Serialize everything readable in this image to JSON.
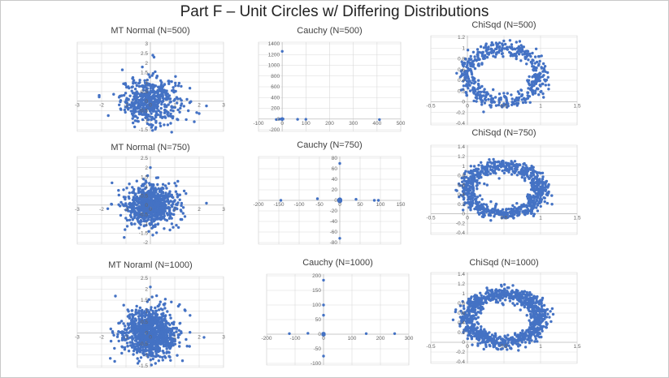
{
  "page": {
    "title": "Part F – Unit Circles w/ Differing Distributions"
  },
  "colors": {
    "marker": "#4472c4",
    "grid": "#d9d9d9",
    "axis": "#bfbfbf",
    "tick": "#666666"
  },
  "chart_data": [
    {
      "id": "mt500",
      "type": "scatter",
      "title": "MT Normal (N=500)",
      "distribution": "normal",
      "n": 500,
      "sd": 0.6,
      "xlim": [
        -3,
        3
      ],
      "ylim": [
        -1.5,
        3
      ],
      "xticks": [
        -3,
        -2,
        -1,
        0,
        1,
        2,
        3
      ],
      "yticks": [
        -1.5,
        -1,
        -0.5,
        0,
        0.5,
        1,
        1.5,
        2,
        2.5,
        3
      ],
      "xlabels": [
        "-3",
        "-2",
        "-1",
        "0",
        "1",
        "2",
        "3"
      ],
      "ylabels": [
        "-1.5",
        "-1",
        "-0.5",
        "0",
        "0.5",
        "1",
        "1.5",
        "2",
        "2.5",
        "3"
      ],
      "outliers": [
        [
          -2.1,
          0.3
        ],
        [
          2.3,
          -0.25
        ],
        [
          1.9,
          -0.6
        ],
        [
          2.0,
          -0.65
        ],
        [
          0.1,
          2.4
        ],
        [
          0.15,
          2.3
        ]
      ]
    },
    {
      "id": "cauchy500",
      "type": "scatter",
      "title": "Cauchy (N=500)",
      "distribution": "cauchy",
      "n": 500,
      "xlim": [
        -100,
        500
      ],
      "ylim": [
        -200,
        1400
      ],
      "xticks": [
        -100,
        0,
        100,
        200,
        300,
        400,
        500
      ],
      "yticks": [
        -200,
        0,
        200,
        400,
        600,
        800,
        1000,
        1200,
        1400
      ],
      "xlabels": [
        "-100",
        "0",
        "100",
        "200",
        "300",
        "400",
        "500"
      ],
      "ylabels": [
        "-200",
        "0",
        "200",
        "400",
        "600",
        "800",
        "1000",
        "1200",
        "1400"
      ],
      "outliers": [
        [
          0,
          1260
        ],
        [
          410,
          -10
        ],
        [
          65,
          -5
        ],
        [
          100,
          -5
        ],
        [
          -25,
          -8
        ],
        [
          -12,
          -3
        ]
      ]
    },
    {
      "id": "chisq500",
      "type": "scatter",
      "title": "ChiSqd (N=500)",
      "distribution": "ring",
      "n": 500,
      "cx": 0.5,
      "cy": 0.5,
      "r": 0.5,
      "noise": 0.07,
      "xlim": [
        -0.5,
        1.5
      ],
      "ylim": [
        -0.4,
        1.2
      ],
      "xticks": [
        -0.5,
        0,
        0.5,
        1,
        1.5
      ],
      "yticks": [
        -0.4,
        -0.2,
        0,
        0.2,
        0.4,
        0.6,
        0.8,
        1,
        1.2
      ],
      "xlabels": [
        "-0.5",
        "0",
        "0.5",
        "1",
        "1.5"
      ],
      "ylabels": [
        "-0.4",
        "-0.2",
        "0",
        "0.2",
        "0.4",
        "0.6",
        "0.8",
        "1",
        "1.2"
      ],
      "outliers": []
    },
    {
      "id": "mt750",
      "type": "scatter",
      "title": "MT Normal (N=750)",
      "distribution": "normal",
      "n": 750,
      "sd": 0.55,
      "xlim": [
        -3,
        3
      ],
      "ylim": [
        -2,
        2.5
      ],
      "xticks": [
        -3,
        -2,
        -1,
        0,
        1,
        2,
        3
      ],
      "yticks": [
        -2,
        -1.5,
        -1,
        -0.5,
        0,
        0.5,
        1,
        1.5,
        2,
        2.5
      ],
      "xlabels": [
        "-3",
        "-2",
        "-1",
        "0",
        "1",
        "2",
        "3"
      ],
      "ylabels": [
        "-2",
        "-1.5",
        "-1",
        "-0.5",
        "0",
        "0.5",
        "1",
        "1.5",
        "2",
        "2.5"
      ],
      "outliers": [
        [
          -1.6,
          0.05
        ],
        [
          2.3,
          0.1
        ],
        [
          0.1,
          -1.6
        ],
        [
          0.0,
          2.0
        ]
      ]
    },
    {
      "id": "cauchy750",
      "type": "scatter",
      "title": "Cauchy (N=750)",
      "distribution": "cauchy",
      "n": 750,
      "xlim": [
        -200,
        150
      ],
      "ylim": [
        -80,
        80
      ],
      "xticks": [
        -200,
        -150,
        -100,
        -50,
        0,
        50,
        100,
        150
      ],
      "yticks": [
        -80,
        -60,
        -40,
        -20,
        0,
        20,
        40,
        60,
        80
      ],
      "xlabels": [
        "-200",
        "-150",
        "-100",
        "-50",
        "0",
        "50",
        "100",
        "150"
      ],
      "ylabels": [
        "-80",
        "-60",
        "-40",
        "-20",
        "0",
        "20",
        "40",
        "60",
        "80"
      ],
      "outliers": [
        [
          0,
          70
        ],
        [
          0,
          -72
        ],
        [
          -145,
          0
        ],
        [
          95,
          0
        ],
        [
          85,
          0
        ],
        [
          -55,
          3
        ],
        [
          40,
          2
        ]
      ]
    },
    {
      "id": "chisq750",
      "type": "scatter",
      "title": "ChiSqd (N=750)",
      "distribution": "ring",
      "n": 750,
      "cx": 0.5,
      "cy": 0.5,
      "r": 0.5,
      "noise": 0.07,
      "xlim": [
        -0.5,
        1.5
      ],
      "ylim": [
        -0.4,
        1.4
      ],
      "xticks": [
        -0.5,
        0,
        0.5,
        1,
        1.5
      ],
      "yticks": [
        -0.4,
        -0.2,
        0,
        0.2,
        0.4,
        0.6,
        0.8,
        1,
        1.2,
        1.4
      ],
      "xlabels": [
        "-0.5",
        "0",
        "0.5",
        "1",
        "1.5"
      ],
      "ylabels": [
        "-0.4",
        "-0.2",
        "0",
        "0.2",
        "0.4",
        "0.6",
        "0.8",
        "1",
        "1.2",
        "1.4"
      ],
      "outliers": []
    },
    {
      "id": "mt1000",
      "type": "scatter",
      "title": "MT Noraml (N=1000)",
      "distribution": "normal",
      "n": 1000,
      "sd": 0.55,
      "xlim": [
        -3,
        3
      ],
      "ylim": [
        -1.5,
        2.5
      ],
      "xticks": [
        -3,
        -2,
        -1,
        0,
        1,
        2,
        3
      ],
      "yticks": [
        -1.5,
        -1,
        -0.5,
        0,
        0.5,
        1,
        1.5,
        2,
        2.5
      ],
      "xlabels": [
        "-3",
        "-2",
        "-1",
        "0",
        "1",
        "2",
        "3"
      ],
      "ylabels": [
        "-1.5",
        "-1",
        "-0.5",
        "0",
        "0.5",
        "1",
        "1.5",
        "2",
        "2.5"
      ],
      "outliers": [
        [
          2.2,
          -0.2
        ],
        [
          0.8,
          -1.1
        ],
        [
          0.0,
          2.1
        ]
      ]
    },
    {
      "id": "cauchy1000",
      "type": "scatter",
      "title": "Cauchy (N=1000)",
      "distribution": "cauchy",
      "n": 1000,
      "xlim": [
        -200,
        300
      ],
      "ylim": [
        -100,
        200
      ],
      "xticks": [
        -200,
        -100,
        0,
        100,
        200,
        300
      ],
      "yticks": [
        -100,
        -50,
        0,
        50,
        100,
        150,
        200
      ],
      "xlabels": [
        "-200",
        "-100",
        "0",
        "100",
        "200",
        "300"
      ],
      "ylabels": [
        "-100",
        "-50",
        "0",
        "50",
        "100",
        "150",
        "200"
      ],
      "outliers": [
        [
          0,
          185
        ],
        [
          0,
          -75
        ],
        [
          -120,
          2
        ],
        [
          250,
          2
        ],
        [
          150,
          2
        ],
        [
          -55,
          3
        ],
        [
          0,
          100
        ],
        [
          0,
          65
        ]
      ]
    },
    {
      "id": "chisq1000",
      "type": "scatter",
      "title": "ChiSqd (N=1000)",
      "distribution": "ring",
      "n": 1000,
      "cx": 0.5,
      "cy": 0.5,
      "r": 0.5,
      "noise": 0.07,
      "xlim": [
        -0.5,
        1.5
      ],
      "ylim": [
        -0.4,
        1.4
      ],
      "xticks": [
        -0.5,
        0,
        0.5,
        1,
        1.5
      ],
      "yticks": [
        -0.4,
        -0.2,
        0,
        0.2,
        0.4,
        0.6,
        0.8,
        1,
        1.2,
        1.4
      ],
      "xlabels": [
        "-0.5",
        "0",
        "0.5",
        "1",
        "1.5"
      ],
      "ylabels": [
        "-0.4",
        "-0.2",
        "0",
        "0.2",
        "0.4",
        "0.6",
        "0.8",
        "1",
        "1.2",
        "1.4"
      ],
      "outliers": []
    }
  ]
}
